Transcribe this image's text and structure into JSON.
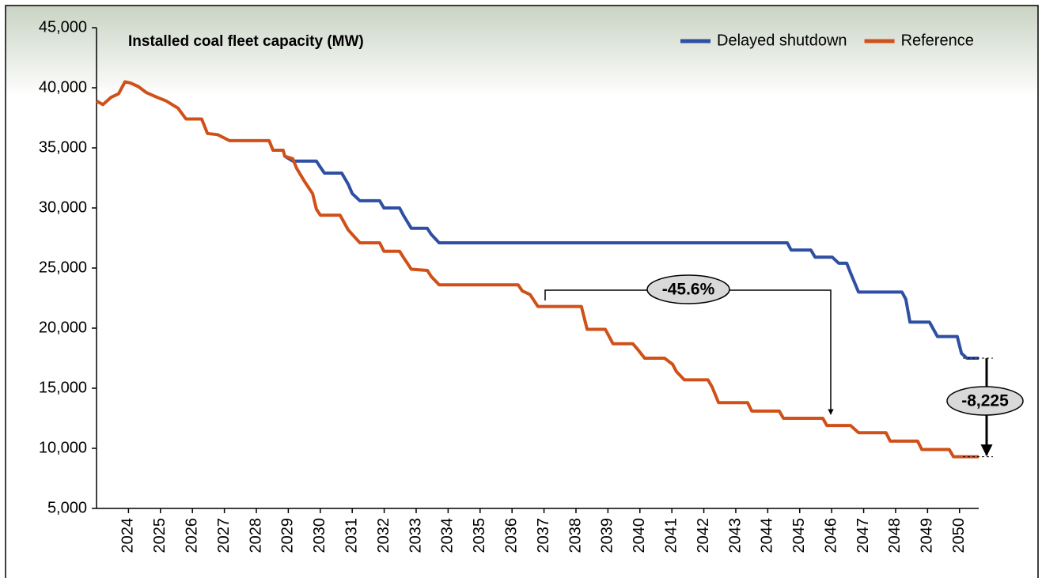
{
  "chart_data": {
    "type": "line",
    "title": "Installed coal fleet capacity (MW)",
    "legend": "upper right",
    "xlim": [
      2023,
      2050.6
    ],
    "xticks": [
      2024,
      2025,
      2026,
      2027,
      2028,
      2029,
      2030,
      2031,
      2032,
      2033,
      2034,
      2035,
      2036,
      2037,
      2038,
      2039,
      2040,
      2041,
      2042,
      2043,
      2044,
      2045,
      2046,
      2047,
      2048,
      2049,
      2050
    ],
    "ylim": [
      5000,
      45000
    ],
    "yticks": [
      {
        "value": 5000,
        "label": "5,000"
      },
      {
        "value": 10000,
        "label": "10,000"
      },
      {
        "value": 15000,
        "label": "15,000"
      },
      {
        "value": 20000,
        "label": "20,000"
      },
      {
        "value": 25000,
        "label": "25,000"
      },
      {
        "value": 30000,
        "label": "30,000"
      },
      {
        "value": 35000,
        "label": "35,000"
      },
      {
        "value": 40000,
        "label": "40,000"
      },
      {
        "value": 45000,
        "label": "45,000"
      }
    ],
    "grid": false,
    "series": [
      {
        "name": "Delayed shutdown",
        "color": "#2f4fa3",
        "x": [
          2028.89,
          2029.14,
          2029.88,
          2030.0,
          2030.13,
          2030.67,
          2030.87,
          2031.0,
          2031.24,
          2031.86,
          2031.99,
          2032.48,
          2032.6,
          2032.85,
          2033.35,
          2033.47,
          2033.72,
          2044.61,
          2044.73,
          2045.35,
          2045.48,
          2046.02,
          2046.22,
          2046.47,
          2046.59,
          2046.84,
          2048.2,
          2048.32,
          2048.45,
          2049.06,
          2049.31,
          2049.93,
          2050.06,
          2050.23,
          2050.6
        ],
        "values": [
          34300,
          33900,
          33900,
          33400,
          32900,
          32900,
          32000,
          31200,
          30600,
          30600,
          30000,
          30000,
          29400,
          28300,
          28300,
          27800,
          27100,
          27100,
          26500,
          26500,
          25900,
          25900,
          25400,
          25400,
          24600,
          23000,
          23000,
          22400,
          20500,
          20500,
          19300,
          19300,
          17900,
          17500,
          17500
        ]
      },
      {
        "name": "Reference",
        "color": "#cf5119",
        "x": [
          2023.0,
          2023.2,
          2023.45,
          2023.69,
          2023.89,
          2024.06,
          2024.31,
          2024.56,
          2024.81,
          2025.18,
          2025.55,
          2025.8,
          2026.29,
          2026.47,
          2026.79,
          2027.16,
          2028.4,
          2028.52,
          2028.84,
          2028.89,
          2029.14,
          2029.26,
          2029.51,
          2029.76,
          2029.88,
          2030.0,
          2030.62,
          2030.87,
          2031.0,
          2031.24,
          2031.86,
          2031.99,
          2032.48,
          2032.6,
          2032.85,
          2033.35,
          2033.47,
          2033.72,
          2036.19,
          2036.32,
          2036.56,
          2036.81,
          2038.17,
          2038.35,
          2038.92,
          2039.16,
          2039.78,
          2039.91,
          2040.15,
          2040.77,
          2041.02,
          2041.14,
          2041.39,
          2042.13,
          2042.26,
          2042.46,
          2043.37,
          2043.5,
          2044.36,
          2044.49,
          2045.72,
          2045.85,
          2046.59,
          2046.84,
          2047.7,
          2047.83,
          2048.69,
          2048.82,
          2049.68,
          2049.81,
          2050.6
        ],
        "values": [
          38900,
          38600,
          39200,
          39500,
          40500,
          40400,
          40100,
          39600,
          39300,
          38900,
          38300,
          37400,
          37400,
          36200,
          36100,
          35600,
          35600,
          34800,
          34800,
          34300,
          34100,
          33300,
          32200,
          31200,
          29900,
          29400,
          29400,
          28200,
          27800,
          27100,
          27100,
          26400,
          26400,
          25900,
          24900,
          24800,
          24300,
          23600,
          23600,
          23100,
          22800,
          21800,
          21800,
          19900,
          19900,
          18700,
          18700,
          18300,
          17500,
          17500,
          17000,
          16400,
          15700,
          15700,
          15100,
          13800,
          13800,
          13100,
          13100,
          12500,
          12500,
          11900,
          11900,
          11300,
          11300,
          10600,
          10600,
          9900,
          9900,
          9300,
          9300
        ]
      }
    ],
    "annotations": [
      {
        "text": "-45.6%"
      },
      {
        "text": "-8,225"
      }
    ]
  }
}
